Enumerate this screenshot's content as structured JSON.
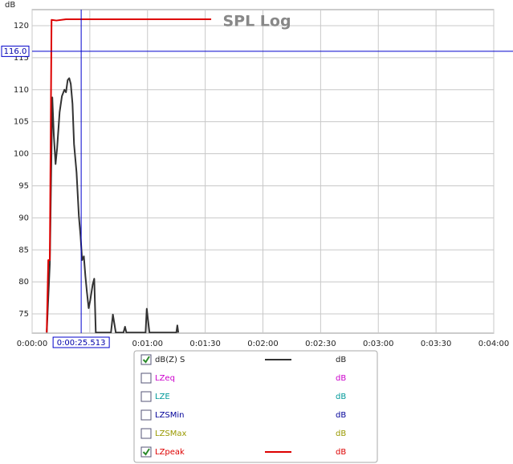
{
  "chart_data": {
    "type": "line",
    "title": "SPL Log",
    "ylabel": "dB",
    "xlim": [
      0,
      240
    ],
    "ylim": [
      72,
      122.5
    ],
    "yticks": [
      75,
      80,
      85,
      90,
      95,
      100,
      105,
      110,
      115,
      120
    ],
    "xticks": [
      {
        "value": 0,
        "label": "0:00:00"
      },
      {
        "value": 30,
        "label": "0:00:30"
      },
      {
        "value": 60,
        "label": "0:01:00"
      },
      {
        "value": 90,
        "label": "0:01:30"
      },
      {
        "value": 120,
        "label": "0:02:00"
      },
      {
        "value": 150,
        "label": "0:02:30"
      },
      {
        "value": 180,
        "label": "0:03:00"
      },
      {
        "value": 210,
        "label": "0:03:30"
      },
      {
        "value": 240,
        "label": "0:04:00"
      }
    ],
    "grid": true,
    "cursor": {
      "x": 25.513,
      "x_label": "0:00:25.513",
      "y": 116,
      "y_label": "116.0",
      "color": "#0000cc"
    },
    "series": [
      {
        "name": "dB(Z) S",
        "color": "#333333",
        "checked": true,
        "unit": "dB",
        "x": [
          7.6,
          9.2,
          10.5,
          11.3,
          12.2,
          13.0,
          14.3,
          15.5,
          16.8,
          17.6,
          18.5,
          19.3,
          20.1,
          21.0,
          21.8,
          23.1,
          24.3,
          25.2,
          26.0,
          26.9,
          27.7,
          28.5,
          29.4,
          30.2,
          31.5,
          32.3,
          33.1,
          41.0,
          42.0,
          43.5,
          47.5,
          48.3,
          49.0,
          59.0,
          59.6,
          61.0,
          75.0,
          75.5,
          76.0
        ],
        "values": [
          72.1,
          82.8,
          108.8,
          102.8,
          98.4,
          100.9,
          106.5,
          109,
          110,
          109.6,
          111.5,
          111.8,
          110.9,
          107.8,
          101.5,
          97.1,
          90.3,
          87.1,
          83.4,
          84,
          80.9,
          78.4,
          75.9,
          77.1,
          79.6,
          80.5,
          72.1,
          72.1,
          74.9,
          72.1,
          72.1,
          73.0,
          72.1,
          72.1,
          75.8,
          72.1,
          72.1,
          73.2,
          72.1
        ]
      },
      {
        "name": "LZeq",
        "color": "#cc00cc",
        "checked": false,
        "unit": "dB",
        "x": [],
        "values": []
      },
      {
        "name": "LZE",
        "color": "#009999",
        "checked": false,
        "unit": "dB",
        "x": [],
        "values": []
      },
      {
        "name": "LZSMin",
        "color": "#000099",
        "checked": false,
        "unit": "dB",
        "x": [],
        "values": []
      },
      {
        "name": "LZSMax",
        "color": "#999900",
        "checked": false,
        "unit": "dB",
        "x": [],
        "values": []
      },
      {
        "name": "LZpeak",
        "color": "#dd0000",
        "checked": true,
        "unit": "dB",
        "x": [
          7.6,
          8.4,
          9.2,
          10.1,
          12.6,
          17.6,
          93.1
        ],
        "values": [
          72.1,
          83.4,
          83.4,
          120.9,
          120.8,
          121,
          121
        ]
      }
    ]
  }
}
